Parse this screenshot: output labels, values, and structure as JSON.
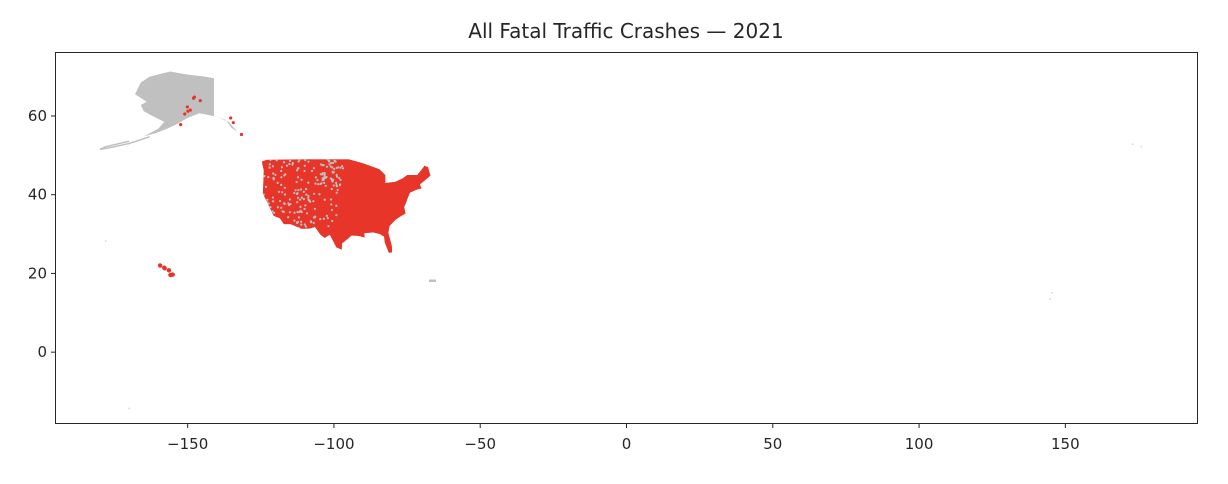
{
  "chart_data": {
    "type": "scatter",
    "title": "All Fatal Traffic Crashes — 2021",
    "xlabel": "",
    "ylabel": "",
    "xlim": [
      -195,
      195
    ],
    "ylim": [
      -18,
      76
    ],
    "x_ticks": [
      -150,
      -100,
      -50,
      0,
      50,
      100,
      150
    ],
    "y_ticks": [
      0,
      20,
      40,
      60
    ],
    "x_tick_labels": [
      "−150",
      "−100",
      "−50",
      "0",
      "50",
      "100",
      "150"
    ],
    "y_tick_labels": [
      "0",
      "20",
      "40",
      "60"
    ],
    "grid": false,
    "colors": {
      "land": "#c0c0c0",
      "crash_points": "#e8352a",
      "axes": "#262626"
    },
    "regions": {
      "alaska": [
        [
          -168,
          65.5
        ],
        [
          -166,
          68.5
        ],
        [
          -163,
          70
        ],
        [
          -156,
          71.3
        ],
        [
          -150,
          70.5
        ],
        [
          -144,
          70
        ],
        [
          -141,
          69.6
        ],
        [
          -141,
          60
        ],
        [
          -137,
          59
        ],
        [
          -135,
          57
        ],
        [
          -131,
          55
        ],
        [
          -133,
          56
        ],
        [
          -136,
          58.5
        ],
        [
          -140,
          59.8
        ],
        [
          -146,
          60.7
        ],
        [
          -150,
          59.5
        ],
        [
          -154,
          57.8
        ],
        [
          -157,
          56.8
        ],
        [
          -161,
          55.6
        ],
        [
          -165,
          54.8
        ],
        [
          -160,
          56.8
        ],
        [
          -158,
          58.5
        ],
        [
          -162,
          60
        ],
        [
          -165,
          61.2
        ],
        [
          -166,
          62.8
        ],
        [
          -164,
          63.6
        ],
        [
          -166,
          64.6
        ]
      ],
      "aleutians": [
        [
          -163,
          54.7
        ],
        [
          -170,
          53
        ],
        [
          -177,
          51.9
        ],
        [
          -180,
          51.5
        ],
        [
          -178,
          52.2
        ],
        [
          -170,
          53.6
        ]
      ],
      "contiguous_us": [
        [
          -124.7,
          48.4
        ],
        [
          -123,
          48.9
        ],
        [
          -110,
          49
        ],
        [
          -95,
          49
        ],
        [
          -90,
          48
        ],
        [
          -84.5,
          46.5
        ],
        [
          -82.4,
          45
        ],
        [
          -82.4,
          43
        ],
        [
          -79,
          43.3
        ],
        [
          -76.5,
          44.2
        ],
        [
          -75,
          45
        ],
        [
          -71.5,
          45
        ],
        [
          -69,
          47.4
        ],
        [
          -67.8,
          47
        ],
        [
          -67,
          44.8
        ],
        [
          -70.6,
          42.6
        ],
        [
          -70,
          41.6
        ],
        [
          -72,
          41.2
        ],
        [
          -74,
          40.5
        ],
        [
          -74.9,
          38.9
        ],
        [
          -75.5,
          37.6
        ],
        [
          -76,
          36.9
        ],
        [
          -75.5,
          35.2
        ],
        [
          -77,
          34.6
        ],
        [
          -79,
          33.6
        ],
        [
          -81,
          32
        ],
        [
          -81.4,
          30.3
        ],
        [
          -80.2,
          27
        ],
        [
          -80.1,
          25.4
        ],
        [
          -81.2,
          25.2
        ],
        [
          -82.6,
          27.8
        ],
        [
          -82.9,
          29.3
        ],
        [
          -84.3,
          30
        ],
        [
          -86.5,
          30.4
        ],
        [
          -89.6,
          30.2
        ],
        [
          -89.5,
          29.1
        ],
        [
          -91.5,
          29.5
        ],
        [
          -94,
          29.6
        ],
        [
          -95.2,
          28.8
        ],
        [
          -97.2,
          27.6
        ],
        [
          -97.3,
          26
        ],
        [
          -99.2,
          26.6
        ],
        [
          -101.4,
          29.8
        ],
        [
          -103.2,
          29
        ],
        [
          -104.7,
          29.9
        ],
        [
          -106.5,
          31.8
        ],
        [
          -108.2,
          31.4
        ],
        [
          -111.1,
          31.3
        ],
        [
          -114.8,
          32.5
        ],
        [
          -117.1,
          32.5
        ],
        [
          -118.5,
          34
        ],
        [
          -120.6,
          34.6
        ],
        [
          -122.5,
          37.5
        ],
        [
          -123.8,
          39.5
        ],
        [
          -124.3,
          40.4
        ],
        [
          -124.2,
          42
        ],
        [
          -124,
          46.2
        ],
        [
          -124.7,
          48.4
        ]
      ],
      "hawaii_islands": [
        [
          -155.5,
          19.6
        ],
        [
          -156.5,
          20.8
        ],
        [
          -157.9,
          21.4
        ],
        [
          -159.5,
          22.1
        ]
      ],
      "puerto_rico": [
        -66.5,
        18.2
      ],
      "minor_specks": [
        [
          -178,
          28.2
        ],
        [
          -170,
          -14.3
        ],
        [
          145.5,
          15.1
        ],
        [
          144.8,
          13.5
        ],
        [
          173,
          52.8
        ],
        [
          176,
          52.2
        ]
      ]
    },
    "crash_points": {
      "alaska": [
        [
          -149.9,
          61.2
        ],
        [
          -149.1,
          61.5
        ],
        [
          -147.7,
          64.8
        ],
        [
          -150.1,
          62.3
        ],
        [
          -151,
          60.5
        ],
        [
          -134.4,
          58.3
        ],
        [
          -131.6,
          55.3
        ],
        [
          -152.4,
          57.8
        ],
        [
          -145.7,
          63.9
        ],
        [
          -148,
          64.5
        ],
        [
          -135.3,
          59.5
        ]
      ],
      "hawaii": [
        [
          -157.85,
          21.3
        ],
        [
          -158,
          21.45
        ],
        [
          -156.4,
          20.8
        ],
        [
          -155.1,
          19.7
        ],
        [
          -155.9,
          19.6
        ],
        [
          -159.4,
          22
        ]
      ]
    }
  }
}
